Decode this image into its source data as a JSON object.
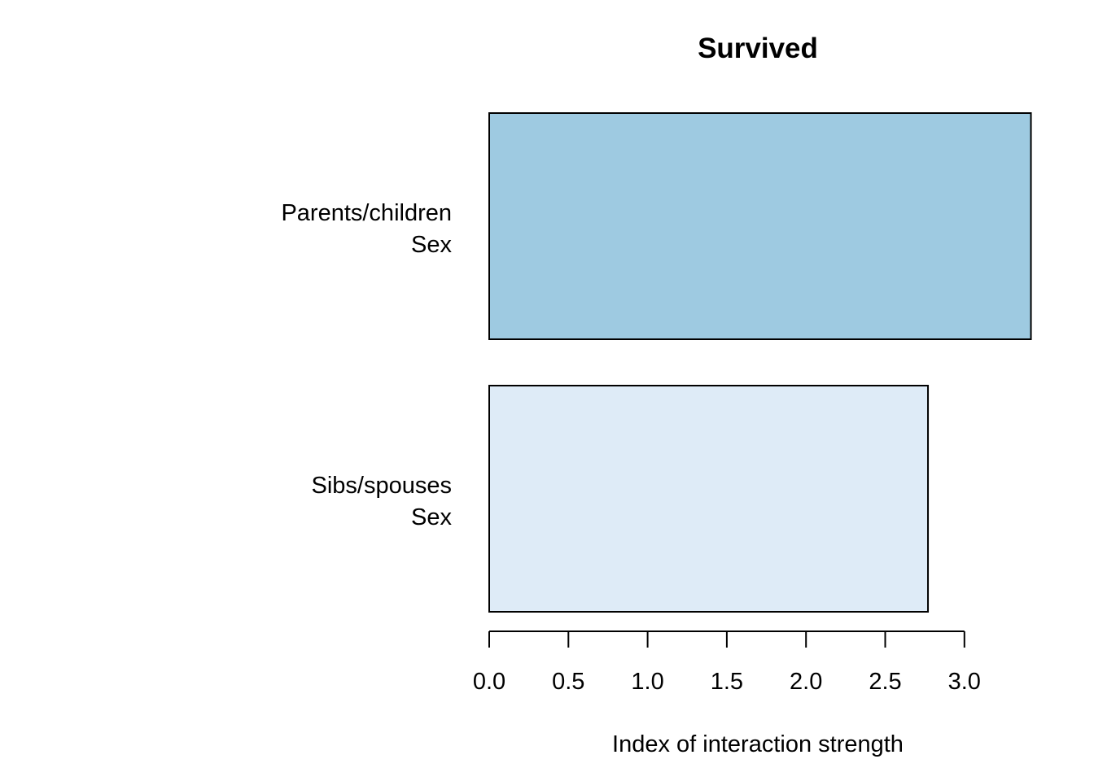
{
  "chart_data": {
    "type": "bar",
    "orientation": "horizontal",
    "title": "Survived",
    "xlabel": "Index of interaction strength",
    "ylabel": "",
    "xlim": [
      0,
      3.42
    ],
    "xticks": [
      "0.0",
      "0.5",
      "1.0",
      "1.5",
      "2.0",
      "2.5",
      "3.0"
    ],
    "categories": [
      {
        "lines": [
          "Parents/children",
          "Sex"
        ],
        "value": 3.42,
        "color": "#9ecae1"
      },
      {
        "lines": [
          "Sibs/spouses",
          "Sex"
        ],
        "value": 2.77,
        "color": "#deebf7"
      }
    ],
    "grid": false,
    "legend": "none"
  }
}
